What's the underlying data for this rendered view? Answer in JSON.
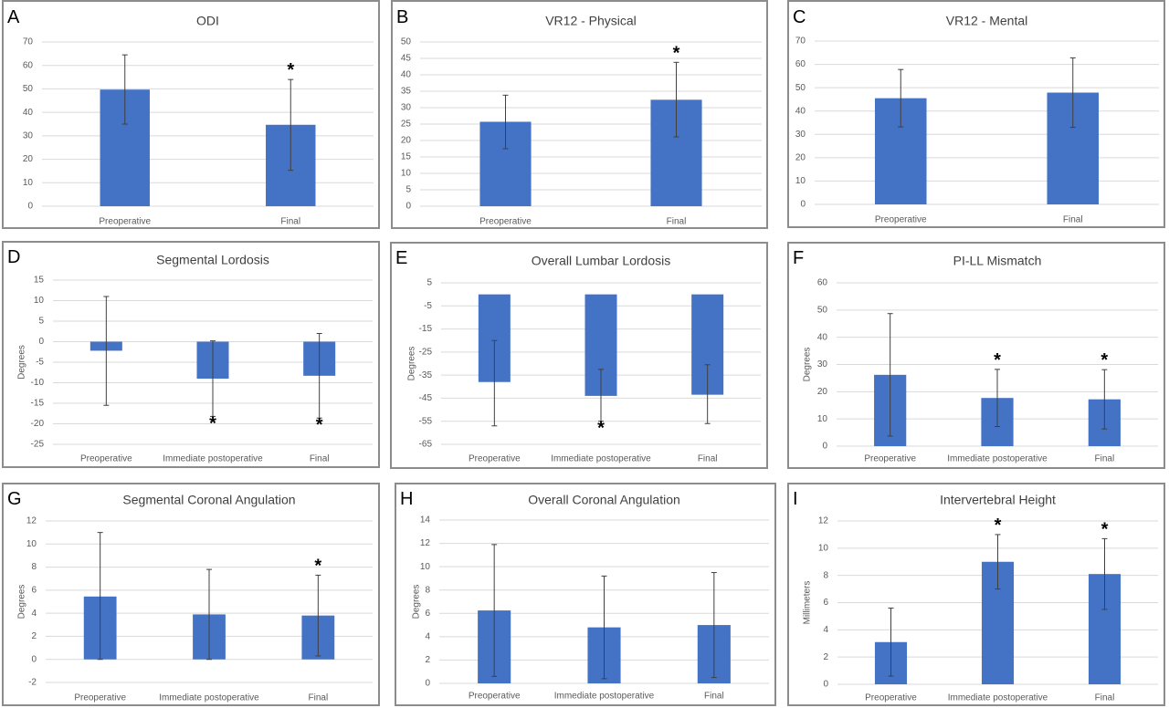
{
  "colors": {
    "bar": "#4472C4",
    "grid": "#d9d9d9",
    "axis_text": "#595959",
    "title_text": "#404040",
    "error_bar": "#404040",
    "star": "#000000"
  },
  "chart_data": [
    {
      "letter": "A",
      "type": "bar",
      "title": "ODI",
      "ylabel": "",
      "categories": [
        "Preoperative",
        "Final"
      ],
      "ylim": [
        0,
        70
      ],
      "yticks": [
        0,
        10,
        20,
        30,
        40,
        50,
        60,
        70
      ],
      "values": [
        49.7,
        34.7
      ],
      "err_low": [
        35,
        15.3
      ],
      "err_high": [
        64.5,
        54
      ],
      "significant": [
        false,
        true
      ]
    },
    {
      "letter": "B",
      "type": "bar",
      "title": "VR12 - Physical",
      "ylabel": "",
      "categories": [
        "Preoperative",
        "Final"
      ],
      "ylim": [
        0,
        50
      ],
      "yticks": [
        0,
        5,
        10,
        15,
        20,
        25,
        30,
        35,
        40,
        45,
        50
      ],
      "values": [
        25.7,
        32.4
      ],
      "err_low": [
        17.5,
        21.1
      ],
      "err_high": [
        33.8,
        43.8
      ],
      "significant": [
        false,
        true
      ]
    },
    {
      "letter": "C",
      "type": "bar",
      "title": "VR12 - Mental",
      "ylabel": "",
      "categories": [
        "Preoperative",
        "Final"
      ],
      "ylim": [
        0,
        70
      ],
      "yticks": [
        0,
        10,
        20,
        30,
        40,
        50,
        60,
        70
      ],
      "values": [
        45.5,
        47.9
      ],
      "err_low": [
        33.2,
        33
      ],
      "err_high": [
        57.8,
        62.8
      ],
      "significant": [
        false,
        false
      ]
    },
    {
      "letter": "D",
      "type": "bar",
      "title": "Segmental Lordosis",
      "ylabel": "Degrees",
      "categories": [
        "Preoperative",
        "Immediate postoperative",
        "Final"
      ],
      "ylim": [
        -25,
        15
      ],
      "yticks": [
        -25,
        -20,
        -15,
        -10,
        -5,
        0,
        5,
        10,
        15
      ],
      "values": [
        -2.2,
        -9,
        -8.3
      ],
      "err_low": [
        -15.5,
        -18.2,
        -18.6
      ],
      "err_high": [
        11,
        0.2,
        2
      ],
      "significant": [
        false,
        true,
        true
      ]
    },
    {
      "letter": "E",
      "type": "bar",
      "title": "Overall Lumbar Lordosis",
      "ylabel": "Degrees",
      "categories": [
        "Preoperative",
        "Immediate postoperative",
        "Final"
      ],
      "ylim": [
        -65,
        5
      ],
      "yticks": [
        -65,
        -55,
        -45,
        -35,
        -25,
        -15,
        -5,
        5
      ],
      "values": [
        -38,
        -44,
        -43.5
      ],
      "err_low": [
        -57,
        -55,
        -56
      ],
      "err_high": [
        -20,
        -32.5,
        -30.5
      ],
      "significant": [
        false,
        true,
        false
      ]
    },
    {
      "letter": "F",
      "type": "bar",
      "title": "PI-LL Mismatch",
      "ylabel": "Degrees",
      "categories": [
        "Preoperative",
        "Immediate postoperative",
        "Final"
      ],
      "ylim": [
        0,
        60
      ],
      "yticks": [
        0,
        10,
        20,
        30,
        40,
        50,
        60
      ],
      "values": [
        26.2,
        17.7,
        17.2
      ],
      "err_low": [
        3.7,
        7.2,
        6.3
      ],
      "err_high": [
        48.7,
        28.2,
        28.1
      ],
      "significant": [
        false,
        true,
        true
      ]
    },
    {
      "letter": "G",
      "type": "bar",
      "title": "Segmental Coronal Angulation",
      "ylabel": "Degrees",
      "categories": [
        "Preoperative",
        "Immediate postoperative",
        "Final"
      ],
      "ylim": [
        -2,
        12
      ],
      "yticks": [
        -2,
        0,
        2,
        4,
        6,
        8,
        10,
        12
      ],
      "values": [
        5.45,
        3.9,
        3.8
      ],
      "err_low": [
        0,
        0,
        0.3
      ],
      "err_high": [
        11,
        7.8,
        7.3
      ],
      "significant": [
        false,
        false,
        true
      ]
    },
    {
      "letter": "H",
      "type": "bar",
      "title": "Overall Coronal Angulation",
      "ylabel": "Degrees",
      "categories": [
        "Preoperative",
        "Immediate postoperative",
        "Final"
      ],
      "ylim": [
        0,
        14
      ],
      "yticks": [
        0,
        2,
        4,
        6,
        8,
        10,
        12,
        14
      ],
      "values": [
        6.25,
        4.8,
        5
      ],
      "err_low": [
        0.6,
        0.4,
        0.5
      ],
      "err_high": [
        11.9,
        9.2,
        9.5
      ],
      "significant": [
        false,
        false,
        false
      ]
    },
    {
      "letter": "I",
      "type": "bar",
      "title": "Intervertebral Height",
      "ylabel": "Millimeters",
      "categories": [
        "Preoperative",
        "Immediate postoperative",
        "Final"
      ],
      "ylim": [
        0,
        12
      ],
      "yticks": [
        0,
        2,
        4,
        6,
        8,
        10,
        12
      ],
      "values": [
        3.1,
        9,
        8.1
      ],
      "err_low": [
        0.6,
        7,
        5.5
      ],
      "err_high": [
        5.6,
        11,
        10.7
      ],
      "significant": [
        false,
        true,
        true
      ]
    }
  ]
}
